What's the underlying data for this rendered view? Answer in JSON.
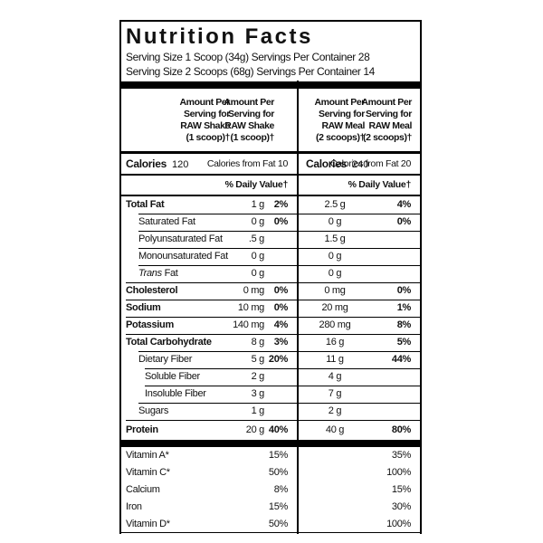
{
  "title": "Nutrition Facts",
  "serving_lines": [
    "Serving Size 1 Scoop (34g) Servings Per Container 28",
    "Serving Size 2 Scoops (68g) Servings Per Container 14"
  ],
  "columns": {
    "shake": {
      "lines": [
        "Amount Per",
        "Serving for",
        "RAW Shake",
        "(1 scoop)†"
      ]
    },
    "meal": {
      "lines": [
        "Amount Per",
        "Serving for",
        "RAW Meal",
        "(2 scoops)†"
      ]
    }
  },
  "calories": {
    "shake": {
      "label": "Calories",
      "value": "120",
      "from_fat_label": "Calories from Fat",
      "from_fat_value": "10"
    },
    "meal": {
      "label": "Calories",
      "value": "240",
      "from_fat_label": "Calories from Fat",
      "from_fat_value": "20"
    }
  },
  "daily_value_heading": "% Daily Value†",
  "nutrients": [
    {
      "name": "Total Fat",
      "bold": true,
      "indent": 0,
      "shake_amt": "1 g",
      "shake_dv": "2%",
      "meal_amt": "2.5 g",
      "meal_dv": "4%"
    },
    {
      "name": "Saturated Fat",
      "bold": false,
      "indent": 1,
      "shake_amt": "0 g",
      "shake_dv": "0%",
      "meal_amt": "0 g",
      "meal_dv": "0%"
    },
    {
      "name": "Polyunsaturated Fat",
      "bold": false,
      "indent": 1,
      "shake_amt": ".5 g",
      "shake_dv": "",
      "meal_amt": "1.5 g",
      "meal_dv": ""
    },
    {
      "name": "Monounsaturated Fat",
      "bold": false,
      "indent": 1,
      "shake_amt": "0 g",
      "shake_dv": "",
      "meal_amt": "0 g",
      "meal_dv": ""
    },
    {
      "name_italic": "Trans",
      "name": " Fat",
      "bold": false,
      "indent": 1,
      "shake_amt": "0 g",
      "shake_dv": "",
      "meal_amt": "0 g",
      "meal_dv": ""
    },
    {
      "name": "Cholesterol",
      "bold": true,
      "indent": 0,
      "shake_amt": "0 mg",
      "shake_dv": "0%",
      "meal_amt": "0 mg",
      "meal_dv": "0%"
    },
    {
      "name": "Sodium",
      "bold": true,
      "indent": 0,
      "shake_amt": "10 mg",
      "shake_dv": "0%",
      "meal_amt": "20 mg",
      "meal_dv": "1%"
    },
    {
      "name": "Potassium",
      "bold": true,
      "indent": 0,
      "shake_amt": "140 mg",
      "shake_dv": "4%",
      "meal_amt": "280 mg",
      "meal_dv": "8%"
    },
    {
      "name": "Total Carbohydrate",
      "bold": true,
      "indent": 0,
      "shake_amt": "8 g",
      "shake_dv": "3%",
      "meal_amt": "16 g",
      "meal_dv": "5%"
    },
    {
      "name": "Dietary Fiber",
      "bold": false,
      "indent": 1,
      "shake_amt": "5 g",
      "shake_dv": "20%",
      "meal_amt": "11 g",
      "meal_dv": "44%"
    },
    {
      "name": "Soluble Fiber",
      "bold": false,
      "indent": 2,
      "shake_amt": "2 g",
      "shake_dv": "",
      "meal_amt": "4 g",
      "meal_dv": ""
    },
    {
      "name": "Insoluble Fiber",
      "bold": false,
      "indent": 2,
      "shake_amt": "3 g",
      "shake_dv": "",
      "meal_amt": "7 g",
      "meal_dv": ""
    },
    {
      "name": "Sugars",
      "bold": false,
      "indent": 1,
      "shake_amt": "1 g",
      "shake_dv": "",
      "meal_amt": "2 g",
      "meal_dv": ""
    },
    {
      "name": "Protein",
      "bold": true,
      "indent": 0,
      "shake_amt": "20 g",
      "shake_dv": "40%",
      "meal_amt": "40 g",
      "meal_dv": "80%"
    }
  ],
  "vitamins_minerals": [
    {
      "name": "Vitamin A*",
      "shake_dv": "15%",
      "meal_dv": "35%"
    },
    {
      "name": "Vitamin C*",
      "shake_dv": "50%",
      "meal_dv": "100%"
    },
    {
      "name": "Calcium",
      "shake_dv": "8%",
      "meal_dv": "15%"
    },
    {
      "name": "Iron",
      "shake_dv": "15%",
      "meal_dv": "30%"
    },
    {
      "name": "Vitamin D*",
      "shake_dv": "50%",
      "meal_dv": "100%"
    }
  ]
}
